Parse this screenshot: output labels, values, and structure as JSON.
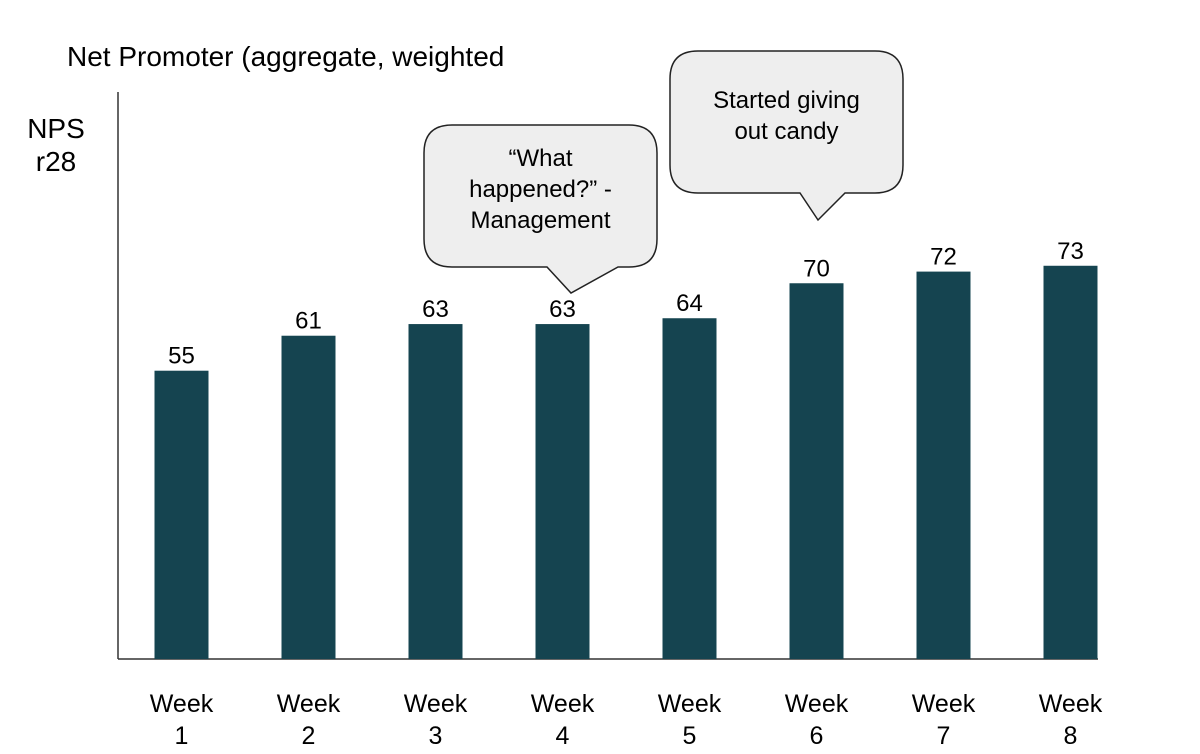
{
  "chart_data": {
    "type": "bar",
    "title": "Net Promoter (aggregate, weighted",
    "ylabel_lines": [
      "NPS",
      "r28"
    ],
    "categories": [
      [
        "Week",
        "1"
      ],
      [
        "Week",
        "2"
      ],
      [
        "Week",
        "3"
      ],
      [
        "Week",
        "4"
      ],
      [
        "Week",
        "5"
      ],
      [
        "Week",
        "6"
      ],
      [
        "Week",
        "7"
      ],
      [
        "Week",
        "8"
      ]
    ],
    "values": [
      55,
      61,
      63,
      63,
      64,
      70,
      72,
      73
    ],
    "bar_color": "#154450",
    "annotations": [
      {
        "category_index": 3,
        "lines": [
          "“What",
          "happened?” -",
          "Management"
        ]
      },
      {
        "category_index": 5,
        "lines": [
          "Started giving",
          "out candy"
        ]
      }
    ],
    "grid": false,
    "legend": "none"
  }
}
